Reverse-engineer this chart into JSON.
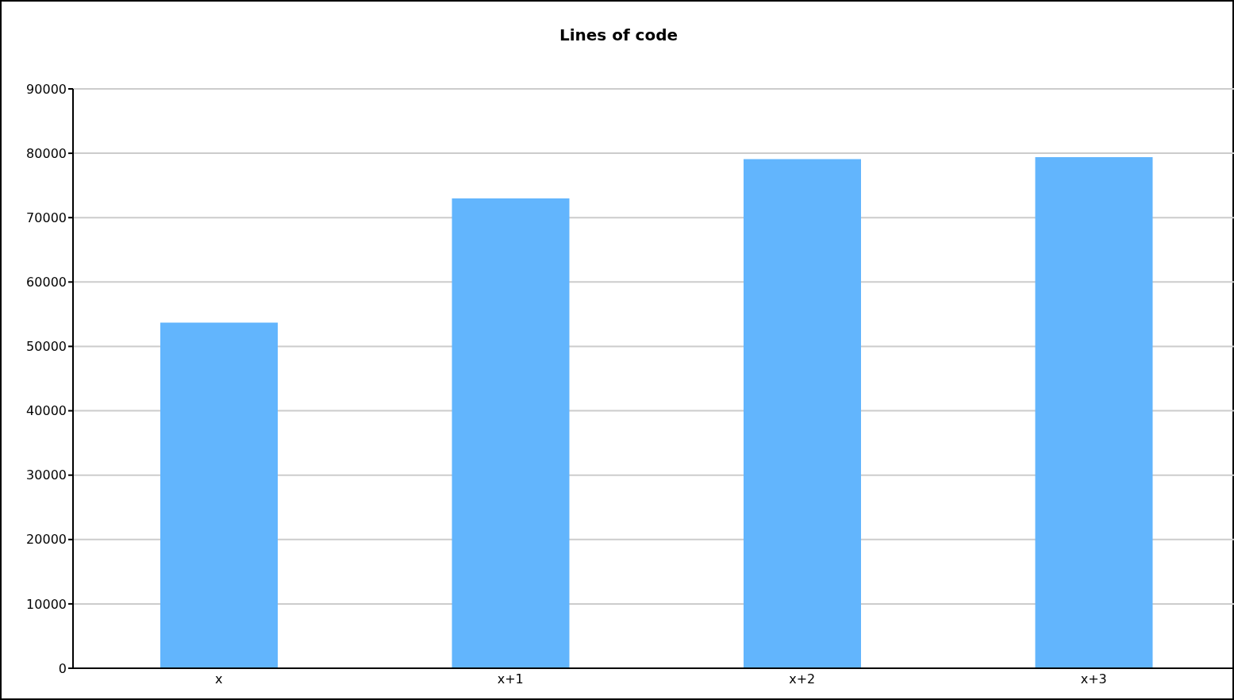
{
  "chart_data": {
    "type": "bar",
    "title": "Lines of code",
    "categories": [
      "x",
      "x+1",
      "x+2",
      "x+3"
    ],
    "values": [
      53700,
      73000,
      79100,
      79400
    ],
    "color": "#62b5fd",
    "ylim": [
      0,
      90000
    ],
    "yticks": [
      0,
      10000,
      20000,
      30000,
      40000,
      50000,
      60000,
      70000,
      80000,
      90000
    ],
    "grid": "y"
  }
}
